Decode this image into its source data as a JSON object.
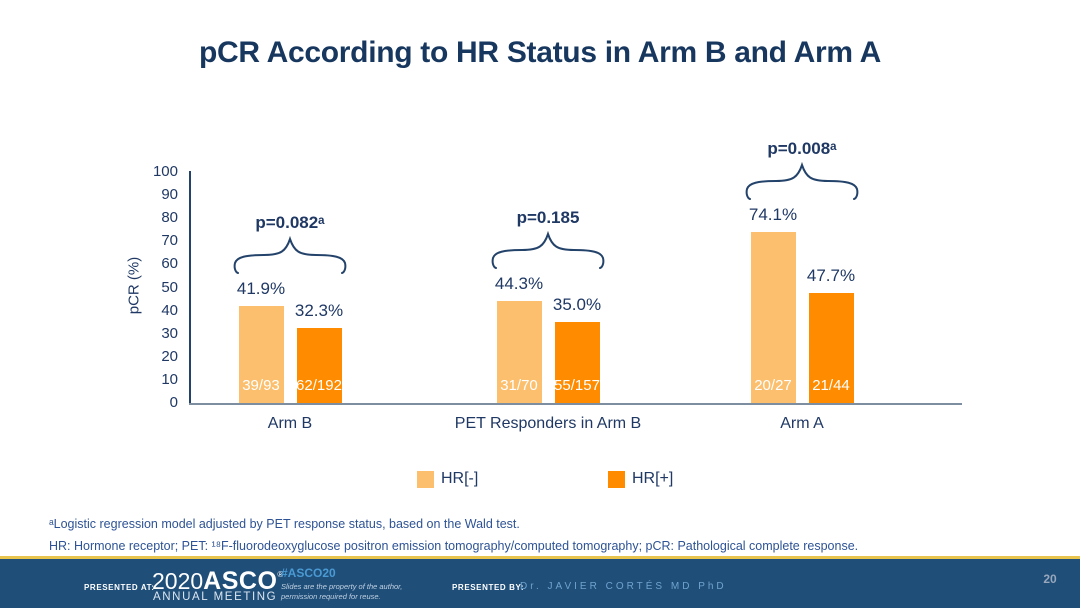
{
  "slide": {
    "title": "pCR According to HR Status in Arm B and Arm A"
  },
  "chart_data": {
    "type": "bar",
    "title": "pCR According to HR Status in Arm B and Arm A",
    "ylabel": "pCR (%)",
    "xlabel": "",
    "ylim": [
      0,
      100
    ],
    "yticks": [
      0,
      10,
      20,
      30,
      40,
      50,
      60,
      70,
      80,
      90,
      100
    ],
    "grid": "off",
    "legend_position": "bottom",
    "legend": [
      {
        "label": "HR[-]",
        "color": "#FBBF6E"
      },
      {
        "label": "HR[+]",
        "color": "#FF8C00"
      }
    ],
    "groups": [
      {
        "category": "Arm B",
        "p_value": "p=0.082ᵃ",
        "bars": [
          {
            "series": "HR[-]",
            "value": 41.9,
            "value_label": "41.9%",
            "count_label": "39/93"
          },
          {
            "series": "HR[+]",
            "value": 32.3,
            "value_label": "32.3%",
            "count_label": "62/192"
          }
        ]
      },
      {
        "category": "PET Responders in Arm B",
        "p_value": "p=0.185",
        "bars": [
          {
            "series": "HR[-]",
            "value": 44.3,
            "value_label": "44.3%",
            "count_label": "31/70"
          },
          {
            "series": "HR[+]",
            "value": 35.0,
            "value_label": "35.0%",
            "count_label": "55/157"
          }
        ]
      },
      {
        "category": "Arm A",
        "p_value": "p=0.008ᵃ",
        "bars": [
          {
            "series": "HR[-]",
            "value": 74.1,
            "value_label": "74.1%",
            "count_label": "20/27"
          },
          {
            "series": "HR[+]",
            "value": 47.7,
            "value_label": "47.7%",
            "count_label": "21/44"
          }
        ]
      }
    ]
  },
  "footnotes": {
    "line1": "ᵃLogistic regression model adjusted by PET response status, based on the Wald test.",
    "line2": "HR: Hormone receptor; PET: ¹⁸F-fluorodeoxyglucose positron emission tomography/computed tomography; pCR: Pathological complete response."
  },
  "footer": {
    "presented_at_label": "PRESENTED AT:",
    "logo_year": "2020",
    "logo_name": "ASCO",
    "logo_reg": "®",
    "logo_sub": "ANNUAL MEETING",
    "hashtag": "#ASCO20",
    "disclaimer_line1": "Slides are the property of the author,",
    "disclaimer_line2": "permission required for reuse.",
    "presented_by_label": "PRESENTED BY:",
    "presenter": "Dr. JAVIER CORTÉS MD PhD",
    "page_number": "20"
  },
  "colors": {
    "title_navy": "#17375E",
    "text_navy": "#1F3864",
    "footnote_blue": "#2E5395",
    "hr_negative": "#FBBF6E",
    "hr_positive": "#FF8C00",
    "axis_line": "#24436B",
    "baseline_gray": "#7E8EA1",
    "footer_background": "#1F4E79",
    "gold_rule": "#E9C44C",
    "hashtag_blue": "#4A9AD4"
  }
}
